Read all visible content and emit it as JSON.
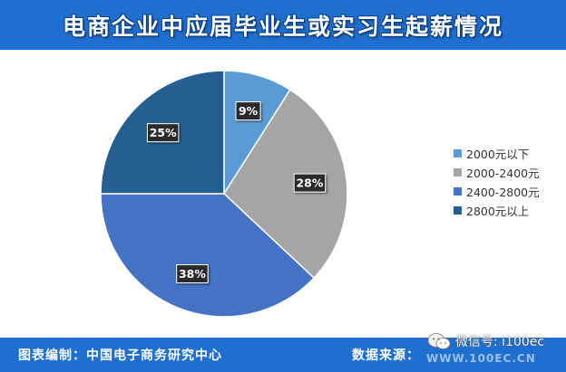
{
  "header": {
    "title": "电商企业中应届毕业生或实习生起薪情况"
  },
  "chart_data": {
    "type": "pie",
    "title": "电商企业中应届毕业生或实习生起薪情况",
    "categories": [
      "2000元以下",
      "2000-2400元",
      "2400-2800元",
      "2800元以上"
    ],
    "values": [
      9,
      28,
      38,
      25
    ],
    "data_labels": [
      "9%",
      "28%",
      "38%",
      "25%"
    ],
    "colors": [
      "#5b9bd5",
      "#a5a5a5",
      "#4472c4",
      "#255e91"
    ],
    "legend_position": "right",
    "start": "12 o'clock, clockwise"
  },
  "footer": {
    "compiler": "图表编制：中国电子商务研究中心",
    "source": "数据来源：",
    "url": "WWW.100EC.CN"
  },
  "watermark": {
    "text": "微信号: i100ec",
    "icon": "wechat-icon"
  }
}
